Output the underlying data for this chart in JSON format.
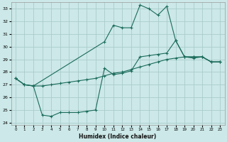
{
  "xlabel": "Humidex (Indice chaleur)",
  "bg_color": "#cce8e8",
  "grid_color": "#aacccc",
  "line_color": "#1a6b5a",
  "xlim": [
    -0.5,
    23.5
  ],
  "ylim": [
    23.8,
    33.5
  ],
  "yticks": [
    24,
    25,
    26,
    27,
    28,
    29,
    30,
    31,
    32,
    33
  ],
  "xticks": [
    0,
    1,
    2,
    3,
    4,
    5,
    6,
    7,
    8,
    9,
    10,
    11,
    12,
    13,
    14,
    15,
    16,
    17,
    18,
    19,
    20,
    21,
    22,
    23
  ],
  "line1_x": [
    0,
    1,
    2,
    3,
    4,
    5,
    6,
    7,
    8,
    9,
    10,
    11,
    12,
    13,
    14,
    15,
    16,
    17,
    18,
    19,
    20,
    21,
    22,
    23
  ],
  "line1_y": [
    27.5,
    27.0,
    26.9,
    26.9,
    27.0,
    27.1,
    27.2,
    27.3,
    27.4,
    27.5,
    27.7,
    27.9,
    28.0,
    28.2,
    28.4,
    28.6,
    28.8,
    29.0,
    29.1,
    29.2,
    29.1,
    29.2,
    28.8,
    28.8
  ],
  "line2_x": [
    0,
    1,
    2,
    3,
    4,
    5,
    6,
    7,
    8,
    9,
    10,
    11,
    12,
    13,
    14,
    15,
    16,
    17,
    18,
    19,
    20,
    21,
    22,
    23
  ],
  "line2_y": [
    27.5,
    27.0,
    26.9,
    24.6,
    24.5,
    24.8,
    24.8,
    24.8,
    24.9,
    25.0,
    28.3,
    27.8,
    27.9,
    28.1,
    29.2,
    29.3,
    29.4,
    29.5,
    30.5,
    29.2,
    29.2,
    29.2,
    28.8,
    28.8
  ],
  "line3_x": [
    0,
    1,
    2,
    10,
    11,
    12,
    13,
    14,
    15,
    16,
    17,
    18,
    19,
    20,
    21,
    22,
    23
  ],
  "line3_y": [
    27.5,
    27.0,
    26.9,
    30.4,
    31.7,
    31.5,
    31.5,
    33.3,
    33.0,
    32.5,
    33.2,
    30.5,
    29.2,
    29.2,
    29.2,
    28.8,
    28.8
  ]
}
